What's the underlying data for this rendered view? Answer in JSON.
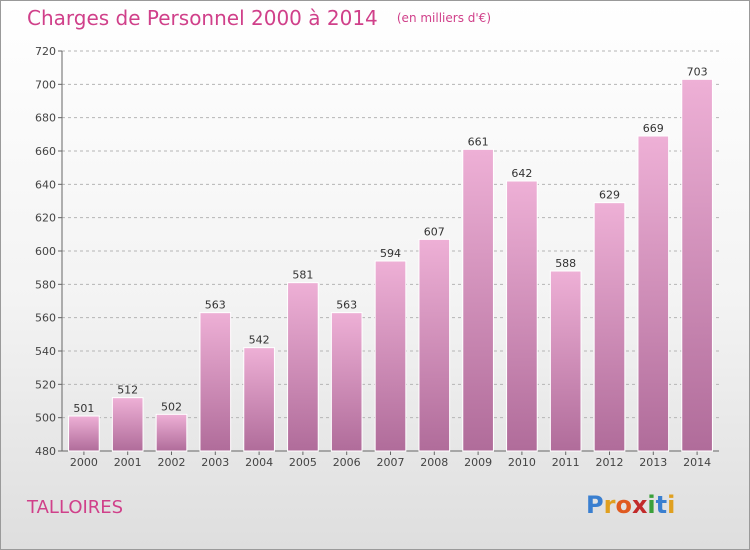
{
  "header": {
    "title": "Charges de Personnel 2000 à 2014",
    "unit": "(en milliers d'€)"
  },
  "commune": "TALLOIRES",
  "logo": {
    "text": "Proxiti",
    "letter_colors": [
      "#3a7fd0",
      "#e0a020",
      "#e05a20",
      "#c22a2a",
      "#3aa03a",
      "#3a7fd0",
      "#e0a020"
    ]
  },
  "colors": {
    "title": "#d0408a",
    "bar_top": "#eeb0d6",
    "bar_bottom": "#b06c9a",
    "bar_stroke": "#ffffff",
    "grid": "#b5b5b5"
  },
  "chart_data": {
    "type": "bar",
    "title": "Charges de Personnel 2000 à 2014",
    "subtitle": "(en milliers d'€)",
    "xlabel": "",
    "ylabel": "",
    "categories": [
      "2000",
      "2001",
      "2002",
      "2003",
      "2004",
      "2005",
      "2006",
      "2007",
      "2008",
      "2009",
      "2010",
      "2011",
      "2012",
      "2013",
      "2014"
    ],
    "values": [
      501,
      512,
      502,
      563,
      542,
      581,
      563,
      594,
      607,
      661,
      642,
      588,
      629,
      669,
      703
    ],
    "ylim": [
      480,
      720
    ],
    "yticks": [
      480,
      500,
      520,
      540,
      560,
      580,
      600,
      620,
      640,
      660,
      680,
      700,
      720
    ],
    "grid": true,
    "grid_style": "dashed horizontal",
    "data_labels": true
  }
}
